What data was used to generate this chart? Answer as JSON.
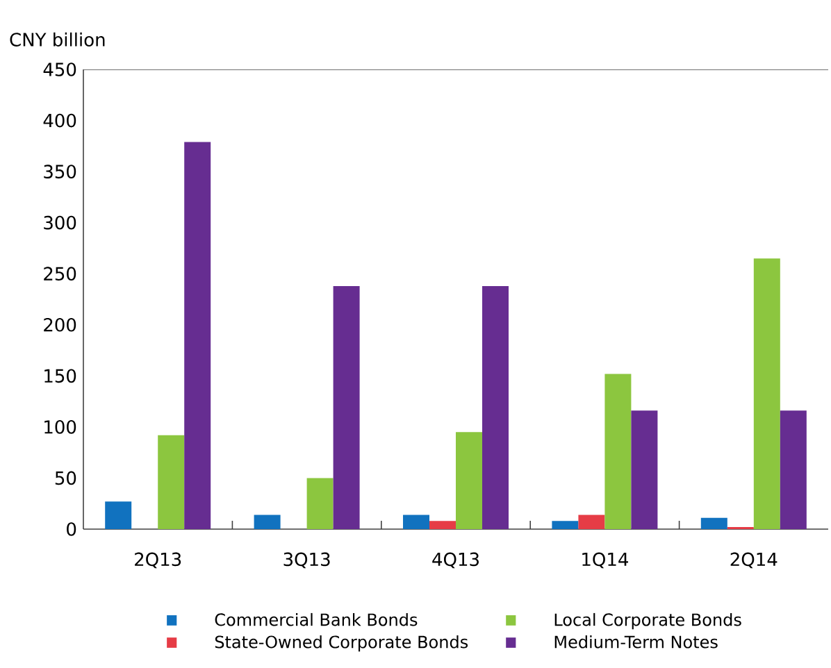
{
  "chart_data": {
    "type": "bar",
    "ylabel": "CNY billion",
    "categories": [
      "2Q13",
      "3Q13",
      "4Q13",
      "1Q14",
      "2Q14"
    ],
    "ylim": [
      0,
      450
    ],
    "yticks": [
      0,
      50,
      100,
      150,
      200,
      250,
      300,
      350,
      400,
      450
    ],
    "legend": "bottom",
    "grid": false,
    "series": [
      {
        "name": "Commercial Bank Bonds",
        "color": "#1172bf",
        "values": [
          27,
          14,
          14,
          8,
          11
        ]
      },
      {
        "name": "State-Owned Corporate Bonds",
        "color": "#e63c46",
        "values": [
          0,
          0,
          8,
          14,
          2
        ]
      },
      {
        "name": "Local Corporate Bonds",
        "color": "#8cc63f",
        "values": [
          92,
          50,
          95,
          152,
          265
        ]
      },
      {
        "name": "Medium-Term Notes",
        "color": "#662d91",
        "values": [
          379,
          238,
          238,
          116,
          116
        ]
      }
    ]
  }
}
